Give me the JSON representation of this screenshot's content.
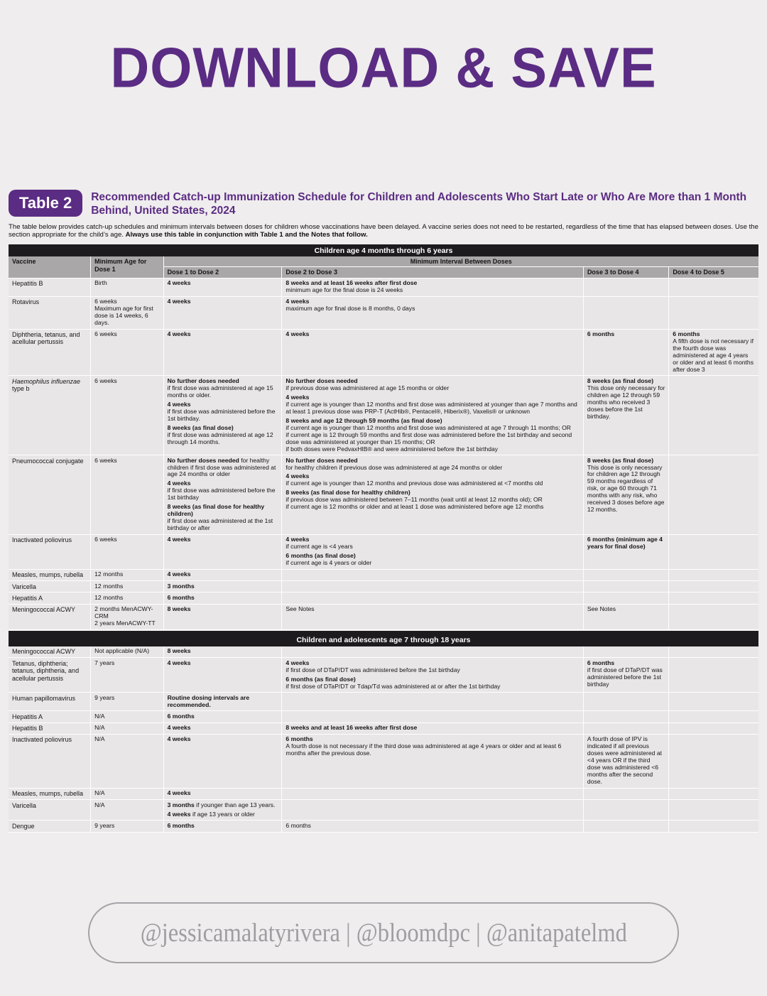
{
  "header": {
    "title": "DOWNLOAD & SAVE"
  },
  "colors": {
    "accent_purple": "#5b2c83",
    "section_bar": "#1e1b1e",
    "header_gray": "#a9a7a7",
    "row_gray": "#e8e6e7",
    "page_bg": "#efedee",
    "footer_gray": "#a6a2a6"
  },
  "table": {
    "badge": "Table 2",
    "title": "Recommended Catch-up Immunization Schedule for Children and Adolescents Who Start Late or Who Are More than 1 Month Behind, United States, 2024",
    "intro_normal": "The table below provides catch-up schedules and minimum intervals between doses for children whose vaccinations have been delayed. A vaccine series does not need to be restarted, regardless of the time that has elapsed between doses. Use the section appropriate for the child’s age. ",
    "intro_bold": "Always use this table in conjunction with Table 1 and the Notes that follow.",
    "columns": {
      "vaccine_header": "Vaccine",
      "min_age_header": "Minimum Age for Dose 1",
      "interval_header": "Minimum Interval Between Doses",
      "dose_headers": [
        "Dose 1 to Dose 2",
        "Dose 2 to Dose 3",
        "Dose 3 to Dose 4",
        "Dose 4 to Dose 5"
      ]
    },
    "sections": [
      {
        "title": "Children age 4 months through 6 years",
        "show_column_headers": true,
        "rows": [
          {
            "cells": [
              [
                "Hepatitis B"
              ],
              [
                "Birth"
              ],
              [
                {
                  "lead": "4 weeks"
                }
              ],
              [
                {
                  "lead": "8 weeks and at least 16 weeks after first dose"
                },
                "minimum age for the final dose is 24 weeks"
              ],
              [],
              []
            ]
          },
          {
            "cells": [
              [
                "Rotavirus"
              ],
              [
                "6 weeks",
                "Maximum age for first dose is 14 weeks, 6 days."
              ],
              [
                {
                  "lead": "4 weeks"
                }
              ],
              [
                {
                  "lead": "4 weeks"
                },
                "maximum age for final dose is 8 months, 0 days"
              ],
              [],
              []
            ]
          },
          {
            "cells": [
              [
                "Diphtheria, tetanus, and acellular pertussis"
              ],
              [
                "6 weeks"
              ],
              [
                {
                  "lead": "4 weeks"
                }
              ],
              [
                {
                  "lead": "4 weeks"
                }
              ],
              [
                {
                  "lead": "6 months"
                }
              ],
              [
                {
                  "lead": "6 months"
                },
                "A fifth dose is not necessary if the fourth dose was administered at age 4 years or older and at least 6 months after dose 3"
              ]
            ]
          },
          {
            "cells": [
              [
                {
                  "t": "Haemophilus influenzae",
                  "i": true
                },
                "type b"
              ],
              [
                "6 weeks"
              ],
              [
                {
                  "lead": "No further doses needed"
                },
                "if first dose was administered at age 15 months or older.",
                {
                  "lead": "4 weeks"
                },
                "if first dose was administered before the 1st birthday.",
                {
                  "lead": "8 weeks (as final dose)"
                },
                "if first dose was administered at age 12 through 14 months."
              ],
              [
                {
                  "lead": "No further doses needed"
                },
                "if previous dose was administered at age 15 months or older",
                {
                  "lead": "4 weeks"
                },
                "if current age is younger than 12 months and first dose was administered at younger than age 7 months and at least 1 previous dose was PRP-T (ActHib®, Pentacel®, Hiberix®), Vaxelis® or unknown",
                {
                  "lead": "8 weeks and age 12 through 59 months (as final dose)"
                },
                "if current age is younger than 12 months and first dose was administered at age 7 through 11 months; OR",
                "if current age is 12 through 59 months and first dose was administered before the 1st birthday and second dose was administered at younger than 15 months; OR",
                "if both doses were PedvaxHIB® and were administered before the 1st birthday"
              ],
              [
                {
                  "lead": "8 weeks (as final dose)"
                },
                "This dose only necessary for children age 12 through 59 months who received 3 doses before the 1st birthday."
              ],
              []
            ]
          },
          {
            "cells": [
              [
                "Pneumococcal conjugate"
              ],
              [
                "6 weeks"
              ],
              [
                {
                  "lead": "No further doses needed",
                  "t": "for healthy children if first dose was administered at age 24 months or older"
                },
                {
                  "lead": "4 weeks"
                },
                "if first dose was administered before the 1st birthday",
                {
                  "lead": "8 weeks (as final dose for healthy children)"
                },
                "if first dose was administered at the 1st birthday or after"
              ],
              [
                {
                  "lead": "No further doses needed"
                },
                "for healthy children if previous dose was administered at age 24 months or older",
                {
                  "lead": "4 weeks"
                },
                "if current age is younger than 12 months and previous dose was administered at <7 months old",
                {
                  "lead": "8 weeks (as final dose for healthy children)"
                },
                "if previous dose was administered between 7–11 months (wait until at least 12 months old); OR",
                "if current age is 12 months or older and at least 1 dose was administered before age 12 months"
              ],
              [
                {
                  "lead": "8 weeks (as final dose)"
                },
                "This dose is only necessary for children age 12 through 59 months regardless of risk, or age 60 through 71 months with any risk, who received 3 doses before age 12 months."
              ],
              []
            ]
          },
          {
            "cells": [
              [
                "Inactivated poliovirus"
              ],
              [
                "6 weeks"
              ],
              [
                {
                  "lead": "4 weeks"
                }
              ],
              [
                {
                  "lead": "4 weeks"
                },
                "if current age is <4 years",
                {
                  "lead": "6 months (as final dose)"
                },
                "if current age is 4 years or older"
              ],
              [
                {
                  "lead": "6 months (minimum age 4 years for final dose)"
                }
              ],
              []
            ]
          },
          {
            "cells": [
              [
                "Measles, mumps, rubella"
              ],
              [
                "12 months"
              ],
              [
                {
                  "lead": "4 weeks"
                }
              ],
              [],
              [],
              []
            ]
          },
          {
            "cells": [
              [
                "Varicella"
              ],
              [
                "12 months"
              ],
              [
                {
                  "lead": "3 months"
                }
              ],
              [],
              [],
              []
            ]
          },
          {
            "cells": [
              [
                "Hepatitis A"
              ],
              [
                "12 months"
              ],
              [
                {
                  "lead": "6 months"
                }
              ],
              [],
              [],
              []
            ]
          },
          {
            "cells": [
              [
                "Meningococcal ACWY"
              ],
              [
                "2 months MenACWY-CRM",
                "2 years MenACWY-TT"
              ],
              [
                {
                  "lead": "8 weeks"
                }
              ],
              [
                "See Notes"
              ],
              [
                "See Notes"
              ],
              []
            ]
          }
        ]
      },
      {
        "title": "Children and adolescents age 7 through 18 years",
        "show_column_headers": false,
        "rows": [
          {
            "cells": [
              [
                "Meningococcal ACWY"
              ],
              [
                "Not applicable (N/A)"
              ],
              [
                {
                  "lead": "8 weeks"
                }
              ],
              [],
              [],
              []
            ]
          },
          {
            "cells": [
              [
                "Tetanus, diphtheria; tetanus, diphtheria, and acellular pertussis"
              ],
              [
                "7 years"
              ],
              [
                {
                  "lead": "4 weeks"
                }
              ],
              [
                {
                  "lead": "4 weeks"
                },
                "if first dose of DTaP/DT was administered before the 1st birthday",
                {
                  "lead": "6 months (as final dose)"
                },
                "if first dose of DTaP/DT or Tdap/Td was administered at or after the 1st birthday"
              ],
              [
                {
                  "lead": "6 months"
                },
                "if first dose of DTaP/DT was administered before the 1st birthday"
              ],
              []
            ]
          },
          {
            "cells": [
              [
                "Human papillomavirus"
              ],
              [
                "9 years"
              ],
              [
                {
                  "lead": "Routine dosing intervals are recommended."
                }
              ],
              [],
              [],
              []
            ]
          },
          {
            "cells": [
              [
                "Hepatitis A"
              ],
              [
                "N/A"
              ],
              [
                {
                  "lead": "6 months"
                }
              ],
              [],
              [],
              []
            ]
          },
          {
            "cells": [
              [
                "Hepatitis B"
              ],
              [
                "N/A"
              ],
              [
                {
                  "lead": "4 weeks"
                }
              ],
              [
                {
                  "lead": "8 weeks and at least 16 weeks after first dose"
                }
              ],
              [],
              []
            ]
          },
          {
            "cells": [
              [
                "Inactivated poliovirus"
              ],
              [
                "N/A"
              ],
              [
                {
                  "lead": "4 weeks"
                }
              ],
              [
                {
                  "lead": "6 months"
                },
                "A fourth dose is not necessary if the third dose was administered at age 4 years or older and at least 6 months after the previous dose."
              ],
              [
                "A fourth dose of IPV is indicated if all previous doses were administered at <4 years OR if the third dose was administered <6 months after the second dose."
              ],
              []
            ]
          },
          {
            "cells": [
              [
                "Measles, mumps, rubella"
              ],
              [
                "N/A"
              ],
              [
                {
                  "lead": "4 weeks"
                }
              ],
              [],
              [],
              []
            ]
          },
          {
            "cells": [
              [
                "Varicella"
              ],
              [
                "N/A"
              ],
              [
                {
                  "lead": "3 months",
                  "t": "if younger than age 13 years."
                },
                {
                  "lead": "4 weeks",
                  "t": "if age 13 years or older"
                }
              ],
              [],
              [],
              []
            ]
          },
          {
            "cells": [
              [
                "Dengue"
              ],
              [
                "9 years"
              ],
              [
                {
                  "lead": "6 months"
                }
              ],
              [
                "6 months"
              ],
              [],
              []
            ]
          }
        ]
      }
    ]
  },
  "footer": {
    "handles": "@jessicamalatyrivera | @bloomdpc | @anitapatelmd"
  }
}
